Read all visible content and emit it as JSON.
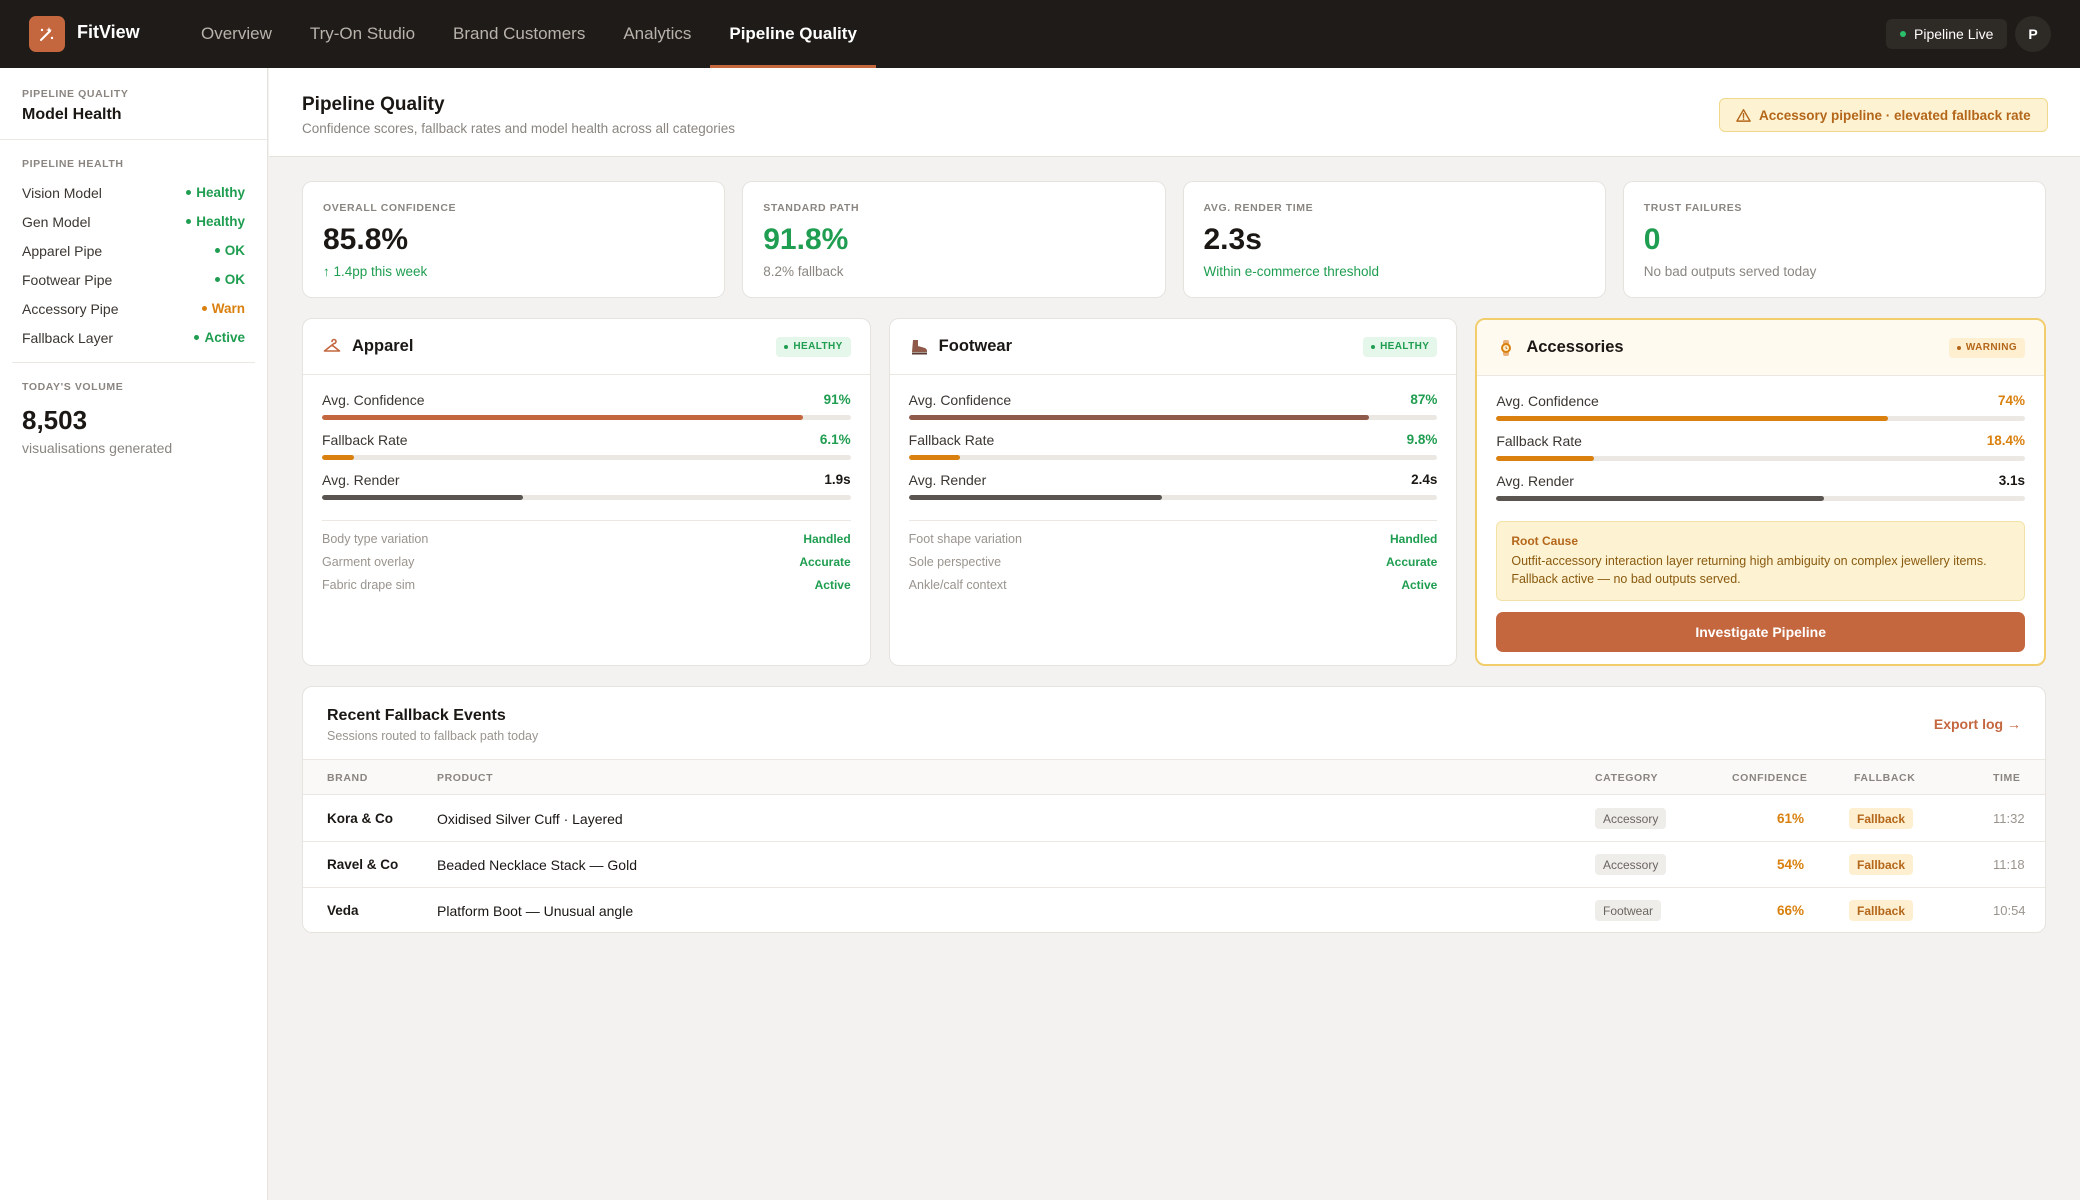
{
  "app": {
    "name": "FitView"
  },
  "nav": [
    {
      "label": "Overview"
    },
    {
      "label": "Try-On Studio"
    },
    {
      "label": "Brand Customers"
    },
    {
      "label": "Analytics"
    },
    {
      "label": "Pipeline Quality",
      "active": true
    }
  ],
  "topbar": {
    "status": "Pipeline Live",
    "avatar_initial": "P"
  },
  "sidebar": {
    "eyebrow": "PIPELINE QUALITY",
    "title": "Model Health",
    "health_label": "PIPELINE HEALTH",
    "health": [
      {
        "name": "Vision Model",
        "status": "Healthy",
        "tone": "green"
      },
      {
        "name": "Gen Model",
        "status": "Healthy",
        "tone": "green"
      },
      {
        "name": "Apparel Pipe",
        "status": "OK",
        "tone": "green"
      },
      {
        "name": "Footwear Pipe",
        "status": "OK",
        "tone": "green"
      },
      {
        "name": "Accessory Pipe",
        "status": "Warn",
        "tone": "orange"
      },
      {
        "name": "Fallback Layer",
        "status": "Active",
        "tone": "green"
      }
    ],
    "volume_label": "TODAY'S VOLUME",
    "volume_value": "8,503",
    "volume_sub": "visualisations generated"
  },
  "header": {
    "title": "Pipeline Quality",
    "subtitle": "Confidence scores, fallback rates and model health across all categories",
    "alert": "Accessory pipeline · elevated fallback rate"
  },
  "kpis": [
    {
      "label": "OVERALL CONFIDENCE",
      "value": "85.8%",
      "sub": "↑ 1.4pp this week",
      "value_tone": "dark",
      "sub_tone": "green"
    },
    {
      "label": "STANDARD PATH",
      "value": "91.8%",
      "sub": "8.2% fallback",
      "value_tone": "green",
      "sub_tone": "muted"
    },
    {
      "label": "AVG. RENDER TIME",
      "value": "2.3s",
      "sub": "Within e-commerce threshold",
      "value_tone": "dark",
      "sub_tone": "green"
    },
    {
      "label": "TRUST FAILURES",
      "value": "0",
      "sub": "No bad outputs served today",
      "value_tone": "green",
      "sub_tone": "muted"
    }
  ],
  "categories": [
    {
      "name": "Apparel",
      "icon": "hanger-icon",
      "badge": "HEALTHY",
      "metrics": [
        {
          "label": "Avg. Confidence",
          "value": "91%",
          "fill": 0.91,
          "color": "#c4673f",
          "value_color": "#1f9d50"
        },
        {
          "label": "Fallback Rate",
          "value": "6.1%",
          "fill": 0.061,
          "color": "#d9800e",
          "value_color": "#1f9d50"
        },
        {
          "label": "Avg. Render",
          "value": "1.9s",
          "fill": 0.38,
          "color": "#5a5550",
          "value_color": "#1a1714"
        }
      ],
      "checks": [
        {
          "label": "Body type variation",
          "value": "Handled"
        },
        {
          "label": "Garment overlay",
          "value": "Accurate"
        },
        {
          "label": "Fabric drape sim",
          "value": "Active"
        }
      ]
    },
    {
      "name": "Footwear",
      "icon": "boot-icon",
      "badge": "HEALTHY",
      "metrics": [
        {
          "label": "Avg. Confidence",
          "value": "87%",
          "fill": 0.87,
          "color": "#8f5a4a",
          "value_color": "#1f9d50"
        },
        {
          "label": "Fallback Rate",
          "value": "9.8%",
          "fill": 0.098,
          "color": "#d9800e",
          "value_color": "#1f9d50"
        },
        {
          "label": "Avg. Render",
          "value": "2.4s",
          "fill": 0.48,
          "color": "#5a5550",
          "value_color": "#1a1714"
        }
      ],
      "checks": [
        {
          "label": "Foot shape variation",
          "value": "Handled"
        },
        {
          "label": "Sole perspective",
          "value": "Accurate"
        },
        {
          "label": "Ankle/calf context",
          "value": "Active"
        }
      ]
    },
    {
      "name": "Accessories",
      "icon": "watch-icon",
      "badge": "WARNING",
      "metrics": [
        {
          "label": "Avg. Confidence",
          "value": "74%",
          "fill": 0.74,
          "color": "#d9800e",
          "value_color": "#d9800e"
        },
        {
          "label": "Fallback Rate",
          "value": "18.4%",
          "fill": 0.184,
          "color": "#d9800e",
          "value_color": "#d9800e"
        },
        {
          "label": "Avg. Render",
          "value": "3.1s",
          "fill": 0.62,
          "color": "#5a5550",
          "value_color": "#1a1714"
        }
      ],
      "root_cause_title": "Root Cause",
      "root_cause_text": "Outfit-accessory interaction layer returning high ambiguity on complex jewellery items. Fallback active — no bad outputs served.",
      "action": "Investigate Pipeline"
    }
  ],
  "events": {
    "title": "Recent Fallback Events",
    "subtitle": "Sessions routed to fallback path today",
    "export": "Export log →",
    "columns": {
      "brand": "BRAND",
      "product": "PRODUCT",
      "category": "CATEGORY",
      "confidence": "CONFIDENCE",
      "fallback": "FALLBACK",
      "time": "TIME"
    },
    "rows": [
      {
        "brand": "Kora & Co",
        "product": "Oxidised Silver Cuff · Layered",
        "category": "Accessory",
        "confidence": "61%",
        "fallback": "Fallback",
        "time": "11:32"
      },
      {
        "brand": "Ravel & Co",
        "product": "Beaded Necklace Stack — Gold",
        "category": "Accessory",
        "confidence": "54%",
        "fallback": "Fallback",
        "time": "11:18"
      },
      {
        "brand": "Veda",
        "product": "Platform Boot — Unusual angle",
        "category": "Footwear",
        "confidence": "66%",
        "fallback": "Fallback",
        "time": "10:54"
      }
    ]
  }
}
